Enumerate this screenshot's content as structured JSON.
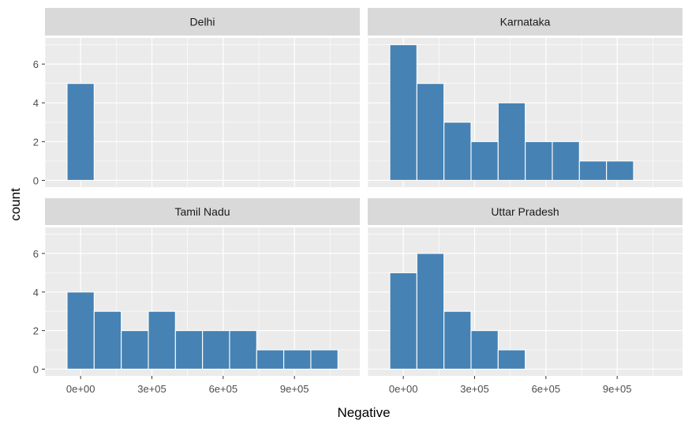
{
  "chart_data": {
    "type": "bar",
    "subtype": "faceted-histogram",
    "xlabel": "Negative",
    "ylabel": "count",
    "bin_width": 114000,
    "xlim": [
      -150000,
      1175000
    ],
    "ylim": [
      -0.35,
      7.35
    ],
    "x_ticks": [
      0,
      300000,
      600000,
      900000
    ],
    "x_tick_labels": [
      "0e+00",
      "3e+05",
      "6e+05",
      "9e+05"
    ],
    "y_ticks": [
      0,
      2,
      4,
      6
    ],
    "y_tick_labels": [
      "0",
      "2",
      "4",
      "6"
    ],
    "grid": true,
    "bar_color": "#4682B4",
    "bar_outline": "#ffffff",
    "panel_background": "#EBEBEB",
    "strip_background": "#D9D9D9",
    "facets": [
      {
        "name": "Delhi",
        "bin_centers": [
          0
        ],
        "counts": [
          5
        ]
      },
      {
        "name": "Karnataka",
        "bin_centers": [
          0,
          114000,
          228000,
          342000,
          456000,
          570000,
          684000,
          798000,
          912000
        ],
        "counts": [
          7,
          5,
          3,
          2,
          4,
          2,
          2,
          1,
          1
        ]
      },
      {
        "name": "Tamil Nadu",
        "bin_centers": [
          0,
          114000,
          228000,
          342000,
          456000,
          570000,
          684000,
          798000,
          912000,
          1026000
        ],
        "counts": [
          4,
          3,
          2,
          3,
          2,
          2,
          2,
          1,
          1,
          1
        ]
      },
      {
        "name": "Uttar Pradesh",
        "bin_centers": [
          0,
          114000,
          228000,
          342000,
          456000
        ],
        "counts": [
          5,
          6,
          3,
          2,
          1
        ]
      }
    ]
  }
}
